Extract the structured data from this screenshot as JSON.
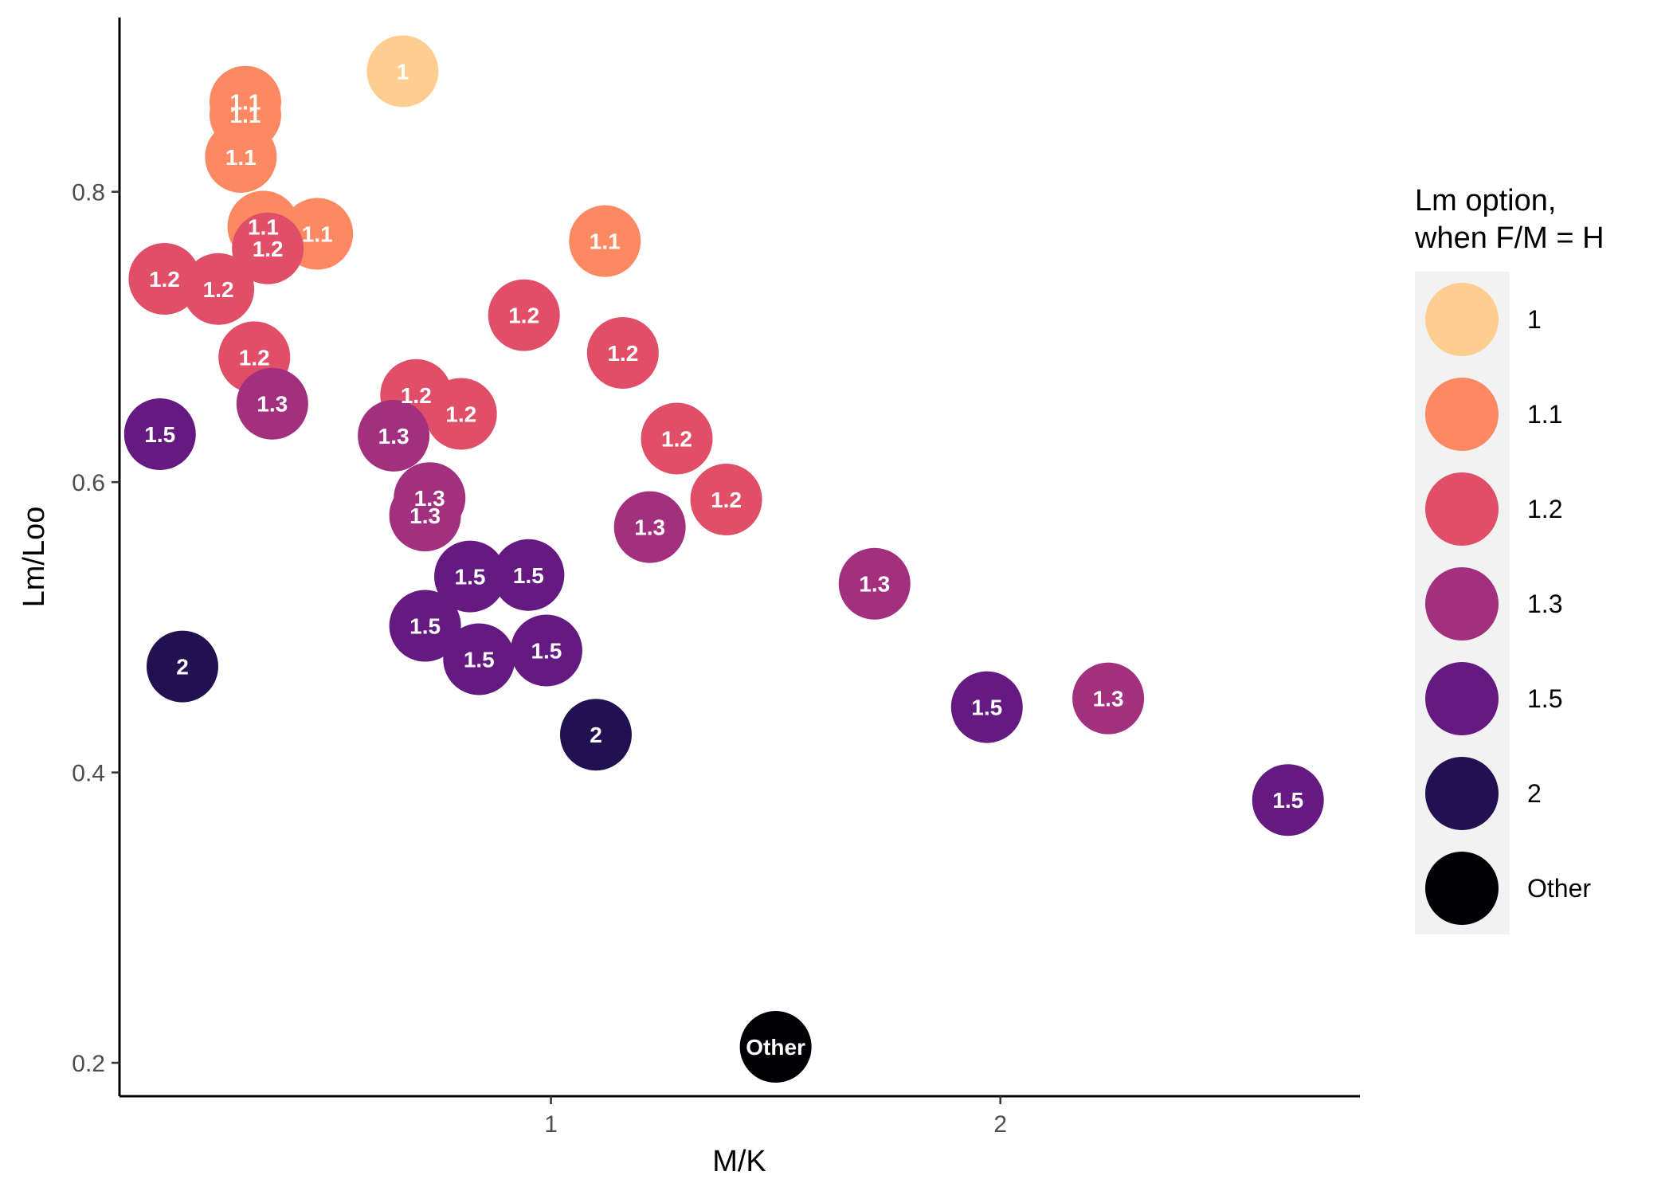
{
  "chart_data": {
    "type": "scatter",
    "xlabel": "M/K",
    "ylabel": "Lm/Loo",
    "xlim": [
      0.04,
      2.8
    ],
    "ylim": [
      0.177,
      0.92
    ],
    "xticks": [
      1,
      2
    ],
    "xtick_labels": [
      "1",
      "2"
    ],
    "yticks": [
      0.2,
      0.4,
      0.6,
      0.8
    ],
    "ytick_labels": [
      "0.2",
      "0.4",
      "0.6",
      "0.8"
    ],
    "grid": false,
    "legend": {
      "title_lines": [
        "Lm option,",
        "when F/M = H"
      ],
      "position": "right",
      "entries": [
        {
          "label": "1",
          "color": "#FECE91"
        },
        {
          "label": "1.1",
          "color": "#FC8961"
        },
        {
          "label": "1.2",
          "color": "#E04E67"
        },
        {
          "label": "1.3",
          "color": "#A3307E"
        },
        {
          "label": "1.5",
          "color": "#641A80"
        },
        {
          "label": "2",
          "color": "#221150"
        },
        {
          "label": "Other",
          "color": "#000004"
        }
      ]
    },
    "points": [
      {
        "x": 0.67,
        "y": 0.883,
        "label": "1"
      },
      {
        "x": 0.32,
        "y": 0.862,
        "label": "1.1"
      },
      {
        "x": 0.32,
        "y": 0.853,
        "label": "1.1"
      },
      {
        "x": 0.31,
        "y": 0.824,
        "label": "1.1"
      },
      {
        "x": 0.36,
        "y": 0.776,
        "label": "1.1"
      },
      {
        "x": 0.48,
        "y": 0.771,
        "label": "1.1"
      },
      {
        "x": 1.12,
        "y": 0.766,
        "label": "1.1"
      },
      {
        "x": 0.37,
        "y": 0.761,
        "label": "1.2"
      },
      {
        "x": 0.14,
        "y": 0.74,
        "label": "1.2"
      },
      {
        "x": 0.26,
        "y": 0.733,
        "label": "1.2"
      },
      {
        "x": 0.94,
        "y": 0.715,
        "label": "1.2"
      },
      {
        "x": 1.16,
        "y": 0.689,
        "label": "1.2"
      },
      {
        "x": 0.34,
        "y": 0.686,
        "label": "1.2"
      },
      {
        "x": 0.7,
        "y": 0.66,
        "label": "1.2"
      },
      {
        "x": 0.8,
        "y": 0.647,
        "label": "1.2"
      },
      {
        "x": 1.28,
        "y": 0.63,
        "label": "1.2"
      },
      {
        "x": 1.39,
        "y": 0.588,
        "label": "1.2"
      },
      {
        "x": 0.38,
        "y": 0.654,
        "label": "1.3"
      },
      {
        "x": 0.65,
        "y": 0.632,
        "label": "1.3"
      },
      {
        "x": 0.73,
        "y": 0.589,
        "label": "1.3"
      },
      {
        "x": 0.72,
        "y": 0.577,
        "label": "1.3"
      },
      {
        "x": 1.22,
        "y": 0.569,
        "label": "1.3"
      },
      {
        "x": 1.72,
        "y": 0.53,
        "label": "1.3"
      },
      {
        "x": 2.24,
        "y": 0.451,
        "label": "1.3"
      },
      {
        "x": 0.13,
        "y": 0.633,
        "label": "1.5"
      },
      {
        "x": 0.82,
        "y": 0.535,
        "label": "1.5"
      },
      {
        "x": 0.95,
        "y": 0.536,
        "label": "1.5"
      },
      {
        "x": 0.72,
        "y": 0.501,
        "label": "1.5"
      },
      {
        "x": 0.84,
        "y": 0.478,
        "label": "1.5"
      },
      {
        "x": 0.99,
        "y": 0.484,
        "label": "1.5"
      },
      {
        "x": 1.97,
        "y": 0.445,
        "label": "1.5"
      },
      {
        "x": 2.64,
        "y": 0.381,
        "label": "1.5"
      },
      {
        "x": 0.18,
        "y": 0.473,
        "label": "2"
      },
      {
        "x": 1.1,
        "y": 0.426,
        "label": "2"
      },
      {
        "x": 1.5,
        "y": 0.211,
        "label": "Other"
      }
    ]
  }
}
